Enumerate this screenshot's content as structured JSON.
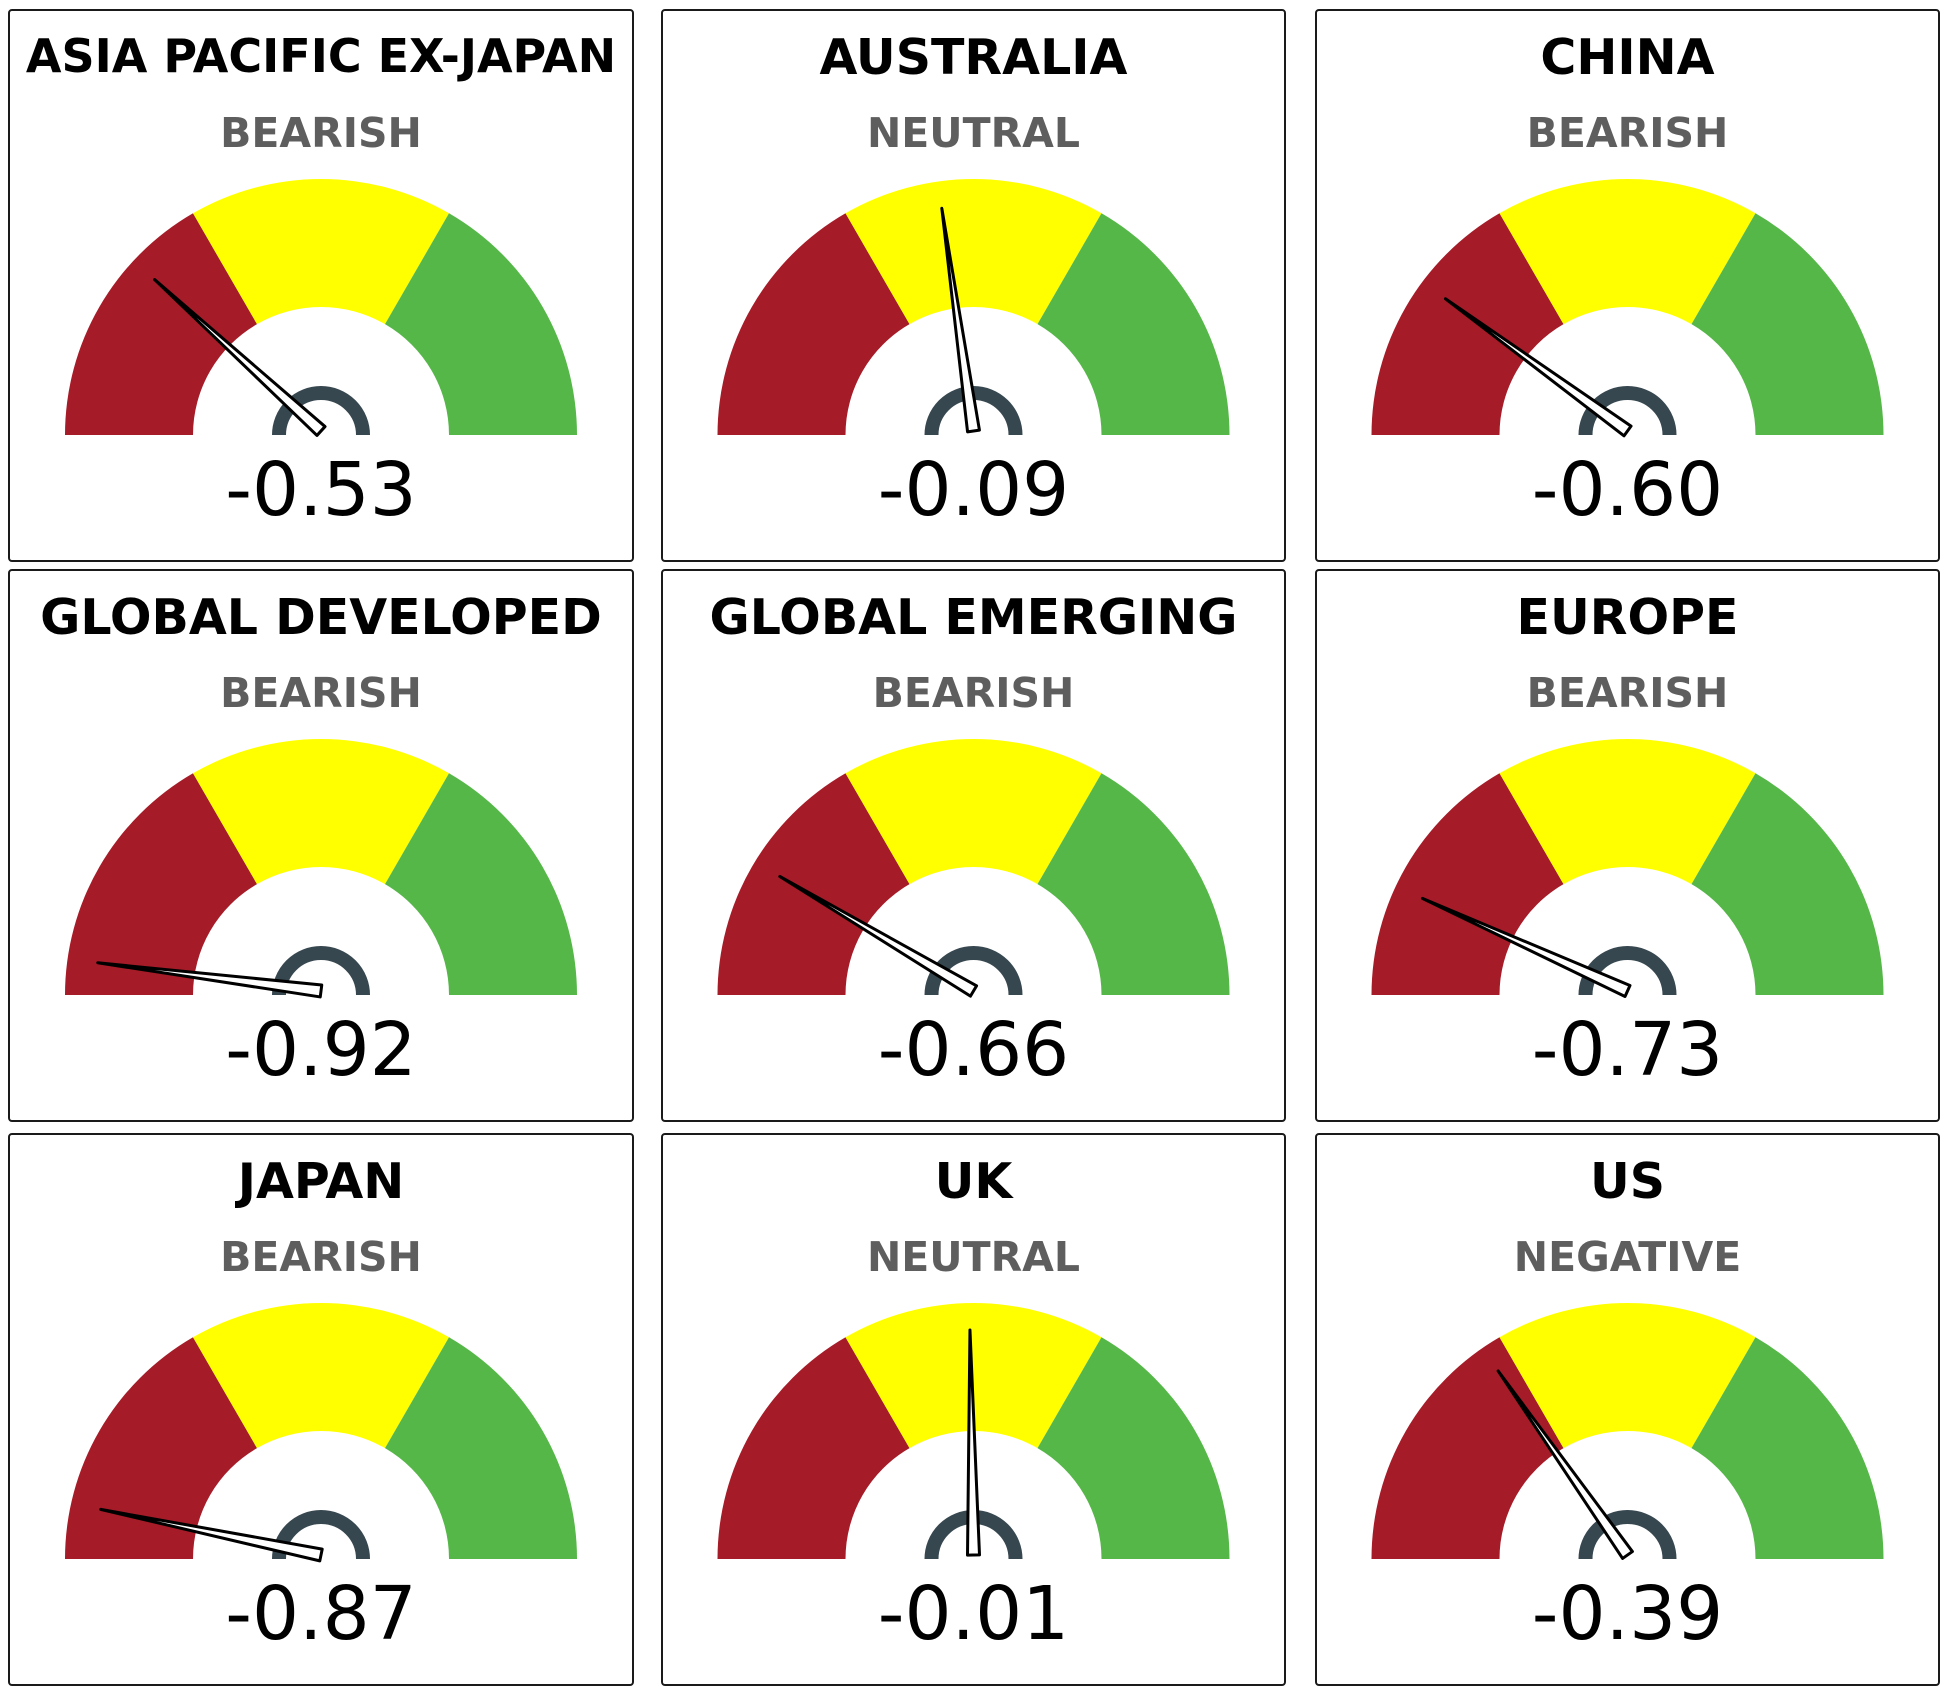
{
  "colors": {
    "bearish_band": "#a51b27",
    "neutral_band": "#ffff00",
    "bullish_band": "#55b748",
    "hub": "#37474f",
    "needle": "#000000",
    "sentiment_text": "#5e5e5e"
  },
  "chart_data": [
    {
      "type": "gauge",
      "title": "ASIA PACIFIC EX-JAPAN",
      "sentiment": "BEARISH",
      "value": -0.53,
      "value_label": "-0.53",
      "range": [
        -1,
        1
      ]
    },
    {
      "type": "gauge",
      "title": "AUSTRALIA",
      "sentiment": "NEUTRAL",
      "value": -0.09,
      "value_label": "-0.09",
      "range": [
        -1,
        1
      ]
    },
    {
      "type": "gauge",
      "title": "CHINA",
      "sentiment": "BEARISH",
      "value": -0.6,
      "value_label": "-0.60",
      "range": [
        -1,
        1
      ]
    },
    {
      "type": "gauge",
      "title": "GLOBAL DEVELOPED",
      "sentiment": "BEARISH",
      "value": -0.92,
      "value_label": "-0.92",
      "range": [
        -1,
        1
      ]
    },
    {
      "type": "gauge",
      "title": "GLOBAL EMERGING",
      "sentiment": "BEARISH",
      "value": -0.66,
      "value_label": "-0.66",
      "range": [
        -1,
        1
      ]
    },
    {
      "type": "gauge",
      "title": "EUROPE",
      "sentiment": "BEARISH",
      "value": -0.73,
      "value_label": "-0.73",
      "range": [
        -1,
        1
      ]
    },
    {
      "type": "gauge",
      "title": "JAPAN",
      "sentiment": "BEARISH",
      "value": -0.87,
      "value_label": "-0.87",
      "range": [
        -1,
        1
      ]
    },
    {
      "type": "gauge",
      "title": "UK",
      "sentiment": "NEUTRAL",
      "value": -0.01,
      "value_label": "-0.01",
      "range": [
        -1,
        1
      ]
    },
    {
      "type": "gauge",
      "title": "US",
      "sentiment": "NEGATIVE",
      "value": -0.39,
      "value_label": "-0.39",
      "range": [
        -1,
        1
      ]
    }
  ]
}
